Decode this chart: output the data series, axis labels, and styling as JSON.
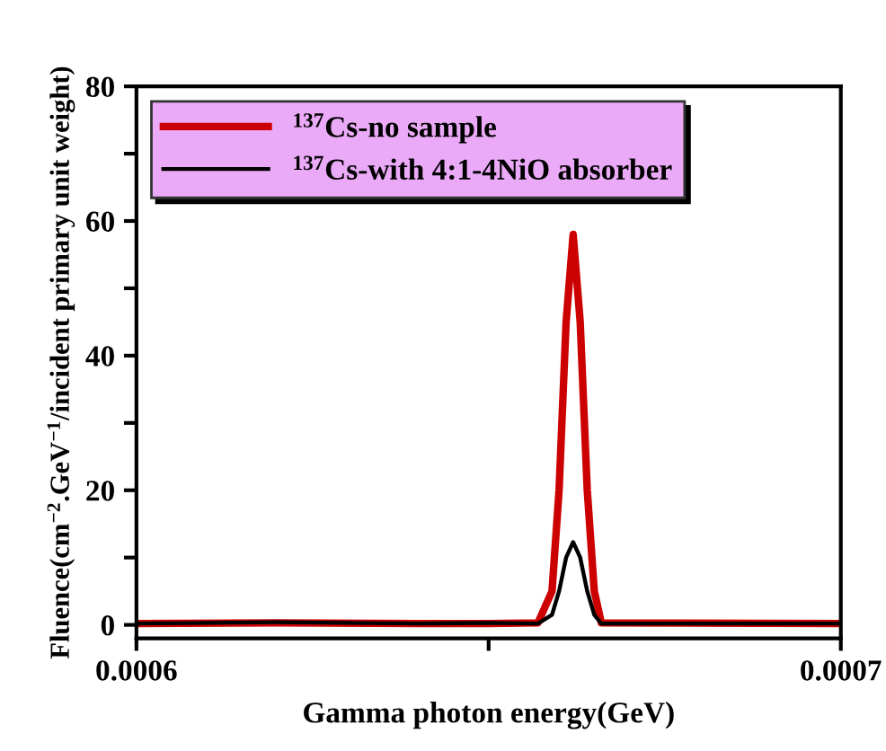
{
  "chart_data": {
    "type": "line",
    "xlabel": "Gamma photon energy(GeV)",
    "ylabel": "Fluence(cm$^{−2}$.GeV$^{−1}$/incident primary unit weight)",
    "series": [
      {
        "name": "$^{137}$Cs-no sample",
        "color": "#cc0000",
        "x": [
          0.0006,
          0.00062,
          0.00064,
          0.00065,
          0.000657,
          0.000659,
          0.00066,
          0.000661,
          0.000662,
          0.000663,
          0.000664,
          0.000665,
          0.000666,
          0.0007
        ],
        "values": [
          0.2,
          0.3,
          0.2,
          0.2,
          0.3,
          5,
          20,
          45,
          58,
          45,
          20,
          5,
          0.3,
          0.2
        ]
      },
      {
        "name": "$^{137}$Cs-with 4:1-4NiO absorber",
        "color": "#000000",
        "x": [
          0.0006,
          0.00062,
          0.00064,
          0.00065,
          0.000657,
          0.000659,
          0.00066,
          0.000661,
          0.000662,
          0.000663,
          0.000664,
          0.000665,
          0.000666,
          0.0007
        ],
        "values": [
          0.2,
          0.4,
          0.2,
          0.3,
          0.2,
          1.5,
          5,
          10,
          12.3,
          10,
          5,
          1.5,
          0.2,
          0.2
        ]
      }
    ],
    "xlim": [
      0.0006,
      0.0007
    ],
    "xticks": [
      {
        "value": 0.0006,
        "label": "0.0006"
      },
      {
        "value": 0.00065,
        "label": null
      },
      {
        "value": 0.0007,
        "label": "0.0007"
      }
    ],
    "ylim": [
      -2,
      80
    ],
    "yticks": [
      0,
      {
        "value": 10,
        "label": null
      },
      20,
      {
        "value": 30,
        "label": null
      },
      40,
      {
        "value": 50,
        "label": null
      },
      60,
      {
        "value": 70,
        "label": null
      },
      80
    ],
    "legend": "top left",
    "grid": false,
    "marker": "none",
    "line_style": "solid"
  }
}
